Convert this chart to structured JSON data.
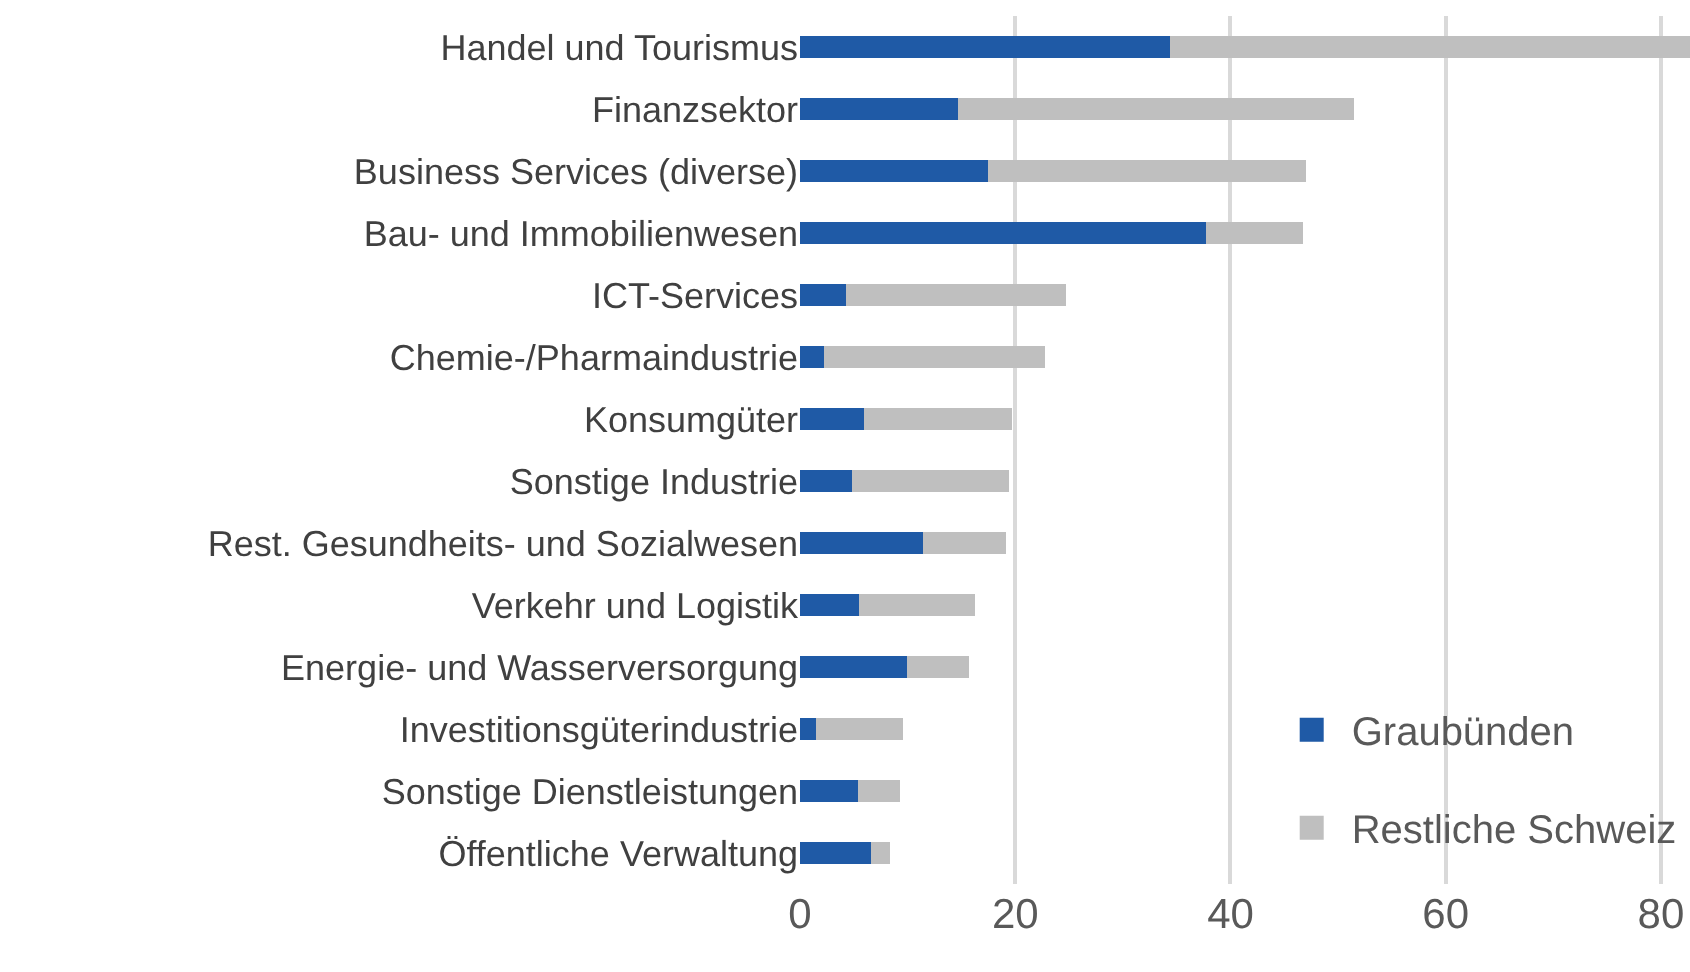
{
  "chart_data": {
    "type": "bar",
    "orientation": "horizontal",
    "stacked": true,
    "categories": [
      "Handel und Tourismus",
      "Finanzsektor",
      "Business Services (diverse)",
      "Bau- und Immobilienwesen",
      "ICT-Services",
      "Chemie-/Pharmaindustrie",
      "Konsumgüter",
      "Sonstige Industrie",
      "Rest. Gesundheits- und Sozialwesen",
      "Verkehr und Logistik",
      "Energie- und Wasserversorgung",
      "Investitionsgüterindustrie",
      "Sonstige Dienstleistungen",
      "Öffentliche Verwaltung"
    ],
    "series": [
      {
        "name": "Graubünden",
        "color": "#1f5aa6",
        "values": [
          34.4,
          14.7,
          17.5,
          37.7,
          4.3,
          2.2,
          5.9,
          4.8,
          11.4,
          5.5,
          9.9,
          1.5,
          5.4,
          6.6
        ]
      },
      {
        "name": "Restliche Schweiz",
        "color": "#bfbfbf",
        "values": [
          48.3,
          36.8,
          29.5,
          9.0,
          20.4,
          20.6,
          13.8,
          14.6,
          7.7,
          10.8,
          5.8,
          8.1,
          3.9,
          1.8
        ]
      }
    ],
    "xlim": [
      0,
      82.7
    ],
    "xticks": [
      0,
      20,
      40,
      60,
      80
    ],
    "grid": "x",
    "legend": "bottom right"
  }
}
